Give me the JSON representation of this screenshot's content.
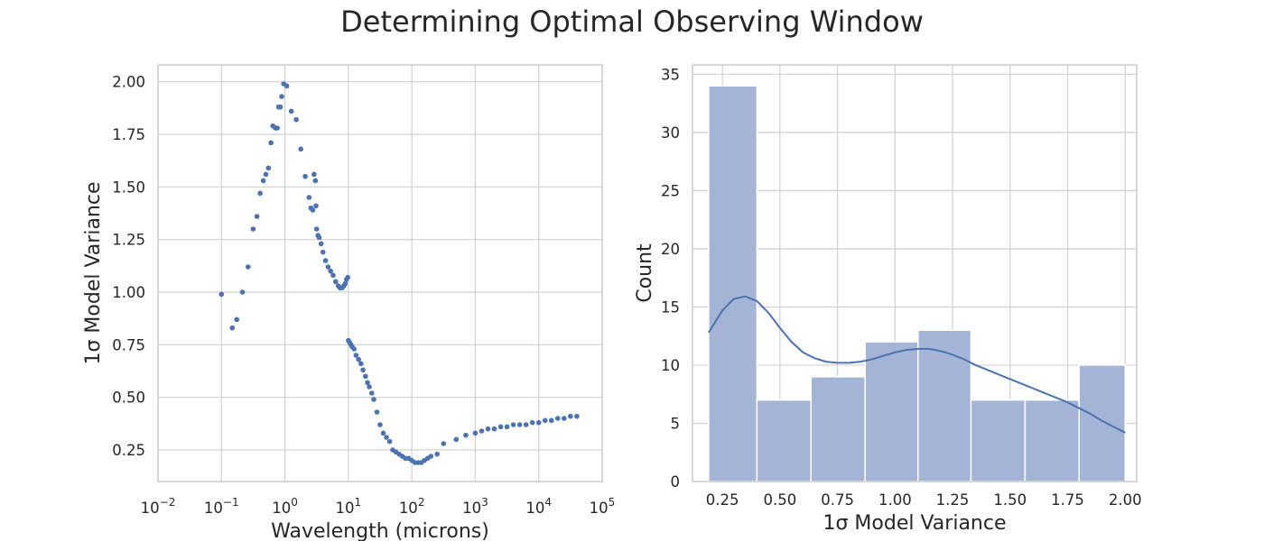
{
  "figure": {
    "suptitle": "Determining Optimal Observing Window"
  },
  "chart_data": [
    {
      "type": "scatter",
      "xlabel": "Wavelength (microns)",
      "ylabel": "1σ Model Variance",
      "xscale": "log",
      "xlim": [
        0.01,
        100000
      ],
      "ylim": [
        0.1,
        2.08
      ],
      "grid": true,
      "marker_color": "#4c72b0",
      "xticks": [
        {
          "base": "10",
          "exp": "−2",
          "value": 0.01
        },
        {
          "base": "10",
          "exp": "−1",
          "value": 0.1
        },
        {
          "base": "10",
          "exp": "0",
          "value": 1
        },
        {
          "base": "10",
          "exp": "1",
          "value": 10
        },
        {
          "base": "10",
          "exp": "2",
          "value": 100
        },
        {
          "base": "10",
          "exp": "3",
          "value": 1000
        },
        {
          "base": "10",
          "exp": "4",
          "value": 10000
        },
        {
          "base": "10",
          "exp": "5",
          "value": 100000
        }
      ],
      "yticks": [
        "0.25",
        "0.50",
        "0.75",
        "1.00",
        "1.25",
        "1.50",
        "1.75",
        "2.00"
      ],
      "points": [
        [
          0.1,
          0.99
        ],
        [
          0.148,
          0.83
        ],
        [
          0.174,
          0.87
        ],
        [
          0.214,
          1.0
        ],
        [
          0.263,
          1.12
        ],
        [
          0.316,
          1.3
        ],
        [
          0.363,
          1.36
        ],
        [
          0.407,
          1.47
        ],
        [
          0.457,
          1.53
        ],
        [
          0.501,
          1.56
        ],
        [
          0.55,
          1.59
        ],
        [
          0.603,
          1.71
        ],
        [
          0.646,
          1.79
        ],
        [
          0.708,
          1.78
        ],
        [
          0.759,
          1.78
        ],
        [
          0.794,
          1.88
        ],
        [
          0.851,
          1.88
        ],
        [
          0.891,
          1.93
        ],
        [
          0.955,
          1.99
        ],
        [
          1.07,
          1.98
        ],
        [
          1.26,
          1.86
        ],
        [
          1.51,
          1.82
        ],
        [
          1.78,
          1.68
        ],
        [
          2.09,
          1.55
        ],
        [
          2.4,
          1.45
        ],
        [
          2.57,
          1.4
        ],
        [
          2.75,
          1.39
        ],
        [
          2.88,
          1.56
        ],
        [
          3.02,
          1.53
        ],
        [
          3.09,
          1.41
        ],
        [
          3.16,
          1.3
        ],
        [
          3.31,
          1.27
        ],
        [
          3.47,
          1.26
        ],
        [
          3.72,
          1.23
        ],
        [
          3.98,
          1.19
        ],
        [
          4.37,
          1.15
        ],
        [
          4.79,
          1.12
        ],
        [
          5.25,
          1.1
        ],
        [
          5.75,
          1.08
        ],
        [
          6.31,
          1.05
        ],
        [
          6.92,
          1.03
        ],
        [
          7.41,
          1.02
        ],
        [
          7.94,
          1.02
        ],
        [
          8.51,
          1.03
        ],
        [
          8.91,
          1.04
        ],
        [
          9.33,
          1.06
        ],
        [
          9.77,
          1.07
        ],
        [
          10.0,
          0.77
        ],
        [
          10.5,
          0.76
        ],
        [
          11.0,
          0.75
        ],
        [
          11.5,
          0.74
        ],
        [
          12.3,
          0.73
        ],
        [
          13.2,
          0.7
        ],
        [
          14.5,
          0.68
        ],
        [
          15.8,
          0.66
        ],
        [
          17.0,
          0.63
        ],
        [
          18.6,
          0.6
        ],
        [
          20.0,
          0.57
        ],
        [
          21.4,
          0.55
        ],
        [
          23.4,
          0.52
        ],
        [
          25.1,
          0.49
        ],
        [
          28.2,
          0.43
        ],
        [
          31.6,
          0.37
        ],
        [
          35.5,
          0.33
        ],
        [
          39.8,
          0.31
        ],
        [
          44.7,
          0.29
        ],
        [
          50.1,
          0.25
        ],
        [
          56.2,
          0.24
        ],
        [
          63.1,
          0.23
        ],
        [
          70.8,
          0.22
        ],
        [
          79.4,
          0.21
        ],
        [
          89.1,
          0.21
        ],
        [
          100,
          0.2
        ],
        [
          112,
          0.19
        ],
        [
          126,
          0.19
        ],
        [
          141,
          0.19
        ],
        [
          158,
          0.2
        ],
        [
          178,
          0.21
        ],
        [
          200,
          0.22
        ],
        [
          251,
          0.23
        ],
        [
          316,
          0.28
        ],
        [
          501,
          0.3
        ],
        [
          708,
          0.32
        ],
        [
          1000,
          0.33
        ],
        [
          1259,
          0.34
        ],
        [
          1585,
          0.35
        ],
        [
          1995,
          0.35
        ],
        [
          2512,
          0.36
        ],
        [
          3162,
          0.36
        ],
        [
          3981,
          0.37
        ],
        [
          5012,
          0.37
        ],
        [
          6310,
          0.37
        ],
        [
          7943,
          0.38
        ],
        [
          10000,
          0.38
        ],
        [
          12589,
          0.39
        ],
        [
          15849,
          0.39
        ],
        [
          19953,
          0.4
        ],
        [
          25119,
          0.4
        ],
        [
          31623,
          0.41
        ],
        [
          39811,
          0.41
        ]
      ]
    },
    {
      "type": "bar",
      "subtype": "histogram",
      "xlabel": "1σ Model Variance",
      "ylabel": "Count",
      "xlim": [
        0.12,
        2.05
      ],
      "ylim": [
        0,
        35.8
      ],
      "grid": true,
      "bar_color": "#a4b4d6",
      "kde_color": "#4c72b0",
      "xticks": [
        "0.25",
        "0.50",
        "0.75",
        "1.00",
        "1.25",
        "1.50",
        "1.75",
        "2.00"
      ],
      "yticks": [
        "0",
        "5",
        "10",
        "15",
        "20",
        "25",
        "30",
        "35"
      ],
      "bin_edges": [
        0.19,
        0.4,
        0.635,
        0.87,
        1.1,
        1.33,
        1.565,
        1.8,
        2.0
      ],
      "counts": [
        34,
        7,
        9,
        12,
        13,
        7,
        7,
        10
      ],
      "kde": {
        "x": [
          0.19,
          0.25,
          0.3,
          0.35,
          0.4,
          0.45,
          0.5,
          0.55,
          0.6,
          0.65,
          0.7,
          0.75,
          0.8,
          0.85,
          0.9,
          0.95,
          1.0,
          1.05,
          1.1,
          1.15,
          1.2,
          1.25,
          1.3,
          1.35,
          1.4,
          1.45,
          1.5,
          1.55,
          1.6,
          1.65,
          1.7,
          1.75,
          1.8,
          1.85,
          1.9,
          1.95,
          2.0
        ],
        "y": [
          12.8,
          14.7,
          15.7,
          15.9,
          15.5,
          14.5,
          13.2,
          12.0,
          11.1,
          10.6,
          10.3,
          10.2,
          10.2,
          10.3,
          10.5,
          10.8,
          11.1,
          11.3,
          11.4,
          11.4,
          11.2,
          10.9,
          10.5,
          10.0,
          9.6,
          9.2,
          8.8,
          8.4,
          8.0,
          7.6,
          7.2,
          6.8,
          6.3,
          5.8,
          5.2,
          4.7,
          4.2
        ]
      }
    }
  ]
}
